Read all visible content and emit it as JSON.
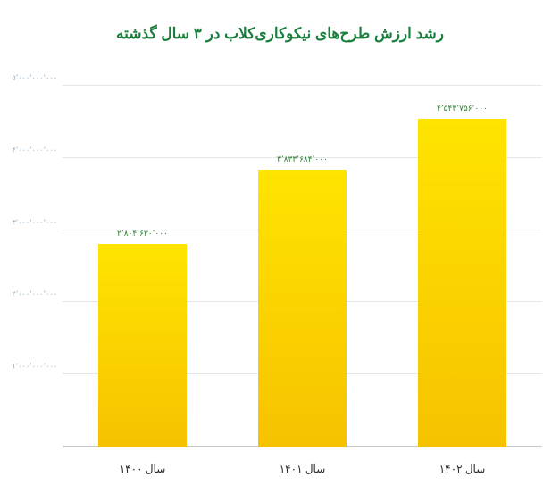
{
  "chart": {
    "type": "bar",
    "title": "رشد ارزش طرح‌های نیکوکاری‌کلاب در ۳ سال گذشته",
    "title_fontsize": 17,
    "title_color": "#1a7f3c",
    "title_weight": "700",
    "background_color": "#ffffff",
    "categories": [
      "سال ۱۴۰۰",
      "سال ۱۴۰۱",
      "سال ۱۴۰۲"
    ],
    "values": [
      2804630000,
      3833684000,
      4543756000
    ],
    "value_labels": [
      "۲٬۸۰۴٬۶۳۰٬۰۰۰",
      "۳٬۸۳۳٬۶۸۴٬۰۰۰",
      "۴٬۵۴۳٬۷۵۶٬۰۰۰"
    ],
    "value_label_fontsize": 9,
    "value_label_color": "#2e7d32",
    "bar_fill_top": "#ffe400",
    "bar_fill_bottom": "#f6c200",
    "bar_width_ratio": 0.55,
    "ylim": [
      0,
      5000000000
    ],
    "ytick_step": 1000000000,
    "ytick_labels": [
      "۱٬۰۰۰٬۰۰۰٬۰۰۰",
      "۲٬۰۰۰٬۰۰۰٬۰۰۰",
      "۳٬۰۰۰٬۰۰۰٬۰۰۰",
      "۴٬۰۰۰٬۰۰۰٬۰۰۰",
      "۵٬۰۰۰٬۰۰۰٬۰۰۰"
    ],
    "ytick_fontsize": 8,
    "ytick_color": "#8aa7bd",
    "grid_color": "#e4e7ea",
    "axis_color": "#c5c9cc",
    "xlabel_fontsize": 12,
    "xlabel_color": "#2a2a2a"
  }
}
